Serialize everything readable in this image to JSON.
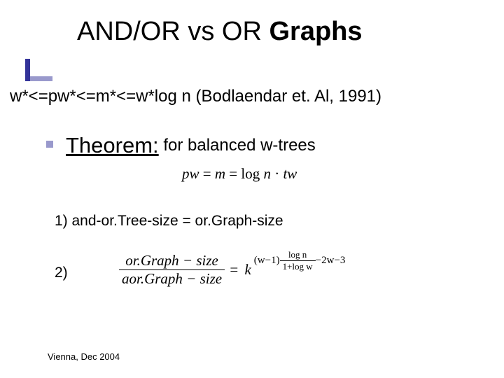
{
  "title": {
    "part1": "AND/OR vs OR ",
    "part2": "Graphs"
  },
  "accent": {
    "v_color": "#333399",
    "h_color": "#9999cc"
  },
  "subrule": "w*<=pw*<=m*<=w*log n (Bodlaendar et. Al, 1991)",
  "theorem": {
    "label": "Theorem:",
    "rest": " for balanced w-trees"
  },
  "formula1": {
    "lhs": "pw",
    "eq1": " = ",
    "m": "m",
    "eq2": " = ",
    "logn": "log",
    "n": " n",
    "dot": " · ",
    "tw": "tw"
  },
  "item1": "1) and-or.Tree-size = or.Graph-size",
  "item2": {
    "label": "2)"
  },
  "formula2": {
    "frac1_num": "or.Graph − size",
    "frac1_den": "aor.Graph − size",
    "eq": " = ",
    "k": "k",
    "expn": {
      "wminus1": "(w−1)",
      "frac_num": "log n",
      "frac_den": "1+log w",
      "tail": "−2w−3"
    }
  },
  "footer": "Vienna, Dec 2004",
  "text_color": "#000000",
  "background_color": "#ffffff"
}
